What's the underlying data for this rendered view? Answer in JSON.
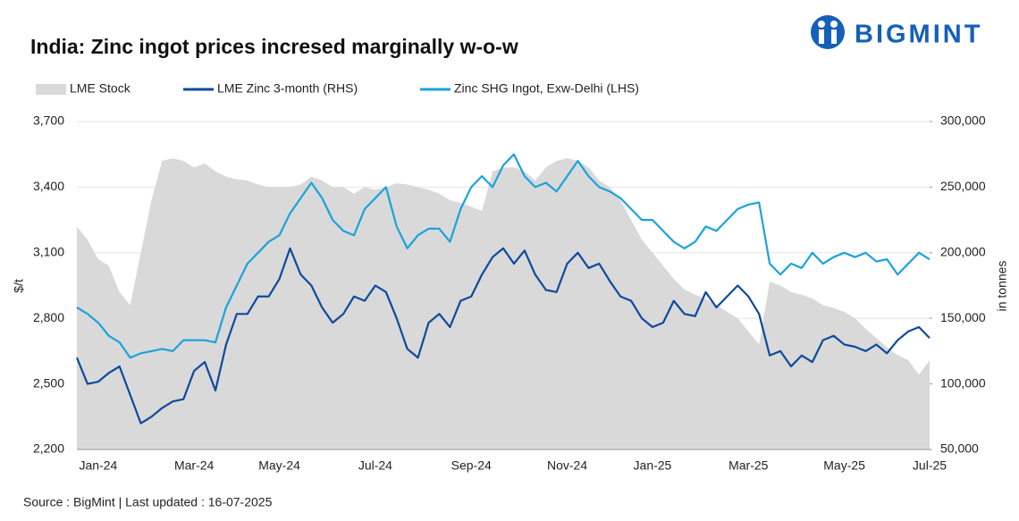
{
  "brand": "BIGMINT",
  "chart_data": {
    "type": "line",
    "title": "India: Zinc ingot prices incresed marginally w-o-w",
    "source": "Source : BigMint | Last updated : 16-07-2025",
    "y_label": "$/t",
    "y2_label": "in tonnes",
    "grid": true,
    "categories": [
      null,
      null,
      "Jan-24",
      null,
      null,
      null,
      null,
      null,
      null,
      null,
      null,
      "Mar-24",
      null,
      null,
      null,
      null,
      null,
      null,
      null,
      "May-24",
      null,
      null,
      null,
      null,
      null,
      null,
      null,
      null,
      "Jul-24",
      null,
      null,
      null,
      null,
      null,
      null,
      null,
      null,
      "Sep-24",
      null,
      null,
      null,
      null,
      null,
      null,
      null,
      null,
      "Nov-24",
      null,
      null,
      null,
      null,
      null,
      null,
      null,
      "Jan-25",
      null,
      null,
      null,
      null,
      null,
      null,
      null,
      null,
      "Mar-25",
      null,
      null,
      null,
      null,
      null,
      null,
      null,
      null,
      "May-25",
      null,
      null,
      null,
      null,
      null,
      null,
      null,
      "Jul-25"
    ],
    "ylim": [
      2200,
      3700
    ],
    "yticks": [
      {
        "value": 2200,
        "label": "2,200"
      },
      {
        "value": 2500,
        "label": "2,500"
      },
      {
        "value": 2800,
        "label": "2,800"
      },
      {
        "value": 3100,
        "label": "3,100"
      },
      {
        "value": 3400,
        "label": "3,400"
      },
      {
        "value": 3700,
        "label": "3,700"
      }
    ],
    "y2lim": [
      50000,
      300000
    ],
    "y2ticks": [
      {
        "value": 50000,
        "label": "50,000"
      },
      {
        "value": 100000,
        "label": "100,000"
      },
      {
        "value": 150000,
        "label": "150,000"
      },
      {
        "value": 200000,
        "label": "200,000"
      },
      {
        "value": 250000,
        "label": "250,000"
      },
      {
        "value": 300000,
        "label": "300,000"
      }
    ],
    "series": [
      {
        "name": "LME Stock",
        "type": "area",
        "axis": "y2",
        "color": "#d9d9d9",
        "values": [
          220000,
          210000,
          195000,
          190000,
          170000,
          160000,
          200000,
          240000,
          270000,
          272000,
          270000,
          265000,
          268000,
          262000,
          258000,
          256000,
          255000,
          252000,
          250000,
          250000,
          250000,
          252000,
          258000,
          255000,
          250000,
          250000,
          245000,
          250000,
          248000,
          250000,
          253000,
          252000,
          250000,
          248000,
          245000,
          240000,
          238000,
          235000,
          232000,
          262000,
          265000,
          265000,
          262000,
          255000,
          265000,
          270000,
          272000,
          270000,
          265000,
          255000,
          250000,
          240000,
          225000,
          210000,
          200000,
          190000,
          180000,
          172000,
          168000,
          165000,
          160000,
          155000,
          150000,
          140000,
          130000,
          178000,
          175000,
          170000,
          168000,
          165000,
          160000,
          158000,
          155000,
          150000,
          142000,
          135000,
          128000,
          122000,
          118000,
          107000,
          118000
        ]
      },
      {
        "name": "LME Zinc  3-month (RHS)",
        "type": "line",
        "color": "#0d4a9c",
        "values": [
          2620,
          2500,
          2510,
          2550,
          2580,
          2450,
          2320,
          2350,
          2390,
          2420,
          2430,
          2560,
          2600,
          2470,
          2680,
          2820,
          2820,
          2900,
          2900,
          2980,
          3120,
          3000,
          2950,
          2850,
          2780,
          2820,
          2900,
          2880,
          2950,
          2920,
          2800,
          2660,
          2620,
          2780,
          2820,
          2760,
          2880,
          2900,
          3000,
          3080,
          3120,
          3050,
          3110,
          3000,
          2930,
          2920,
          3050,
          3100,
          3030,
          3050,
          2970,
          2900,
          2880,
          2800,
          2760,
          2780,
          2880,
          2820,
          2810,
          2920,
          2850,
          2900,
          2950,
          2900,
          2820,
          2630,
          2650,
          2580,
          2630,
          2600,
          2700,
          2720,
          2680,
          2670,
          2650,
          2680,
          2640,
          2700,
          2740,
          2760,
          2710
        ]
      },
      {
        "name": "Zinc SHG Ingot, Exw-Delhi (LHS)",
        "type": "line",
        "color": "#1aa3dc",
        "values": [
          2850,
          2820,
          2780,
          2720,
          2690,
          2620,
          2640,
          2650,
          2660,
          2650,
          2700,
          2700,
          2700,
          2690,
          2850,
          2950,
          3050,
          3100,
          3150,
          3180,
          3280,
          3350,
          3420,
          3350,
          3250,
          3200,
          3180,
          3300,
          3350,
          3400,
          3220,
          3120,
          3180,
          3210,
          3210,
          3150,
          3300,
          3400,
          3450,
          3400,
          3500,
          3550,
          3450,
          3400,
          3420,
          3380,
          3450,
          3520,
          3450,
          3400,
          3380,
          3350,
          3300,
          3250,
          3250,
          3200,
          3150,
          3120,
          3150,
          3220,
          3200,
          3250,
          3300,
          3320,
          3330,
          3050,
          3000,
          3050,
          3030,
          3100,
          3050,
          3080,
          3100,
          3080,
          3100,
          3060,
          3070,
          3000,
          3050,
          3100,
          3070
        ]
      }
    ]
  }
}
